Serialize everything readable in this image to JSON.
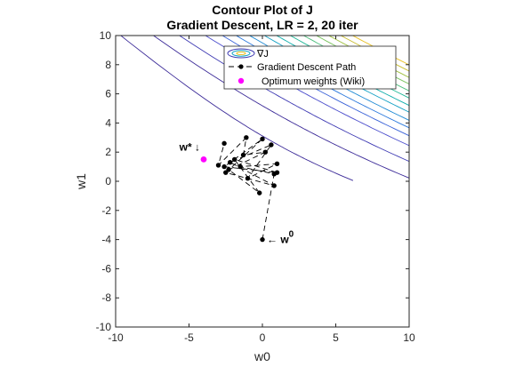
{
  "chart_data": {
    "type": "line",
    "title": "Contour Plot of J",
    "subtitle": "Gradient Descent, LR = 2, 20 iter",
    "xlabel": "w0",
    "ylabel": "w1",
    "xlim": [
      -10,
      10
    ],
    "ylim": [
      -10,
      10
    ],
    "xticks": [
      -10,
      -5,
      0,
      5,
      10
    ],
    "yticks": [
      -10,
      -8,
      -6,
      -4,
      -2,
      0,
      2,
      4,
      6,
      8,
      10
    ],
    "xtick_labels": [
      "-10",
      "-5",
      "0",
      "5",
      "10"
    ],
    "ytick_labels": [
      "-10",
      "-8",
      "-6",
      "-4",
      "-2",
      "0",
      "2",
      "4",
      "6",
      "8",
      "10"
    ],
    "grid": false,
    "legend_position": "top-center",
    "contour": {
      "name": "∇J",
      "min": [
        0.4,
        0.05
      ],
      "quad": {
        "a": 0.3,
        "b": 0.72,
        "c": 1.25
      },
      "levels": [
        10,
        30,
        48,
        68,
        82,
        94,
        106,
        120,
        132,
        146,
        160,
        174,
        188,
        202,
        216
      ],
      "colors": [
        "#3b2a98",
        "#3b2a98",
        "#3e3ab3",
        "#4a4ccc",
        "#3a62d8",
        "#2a78dc",
        "#1e8ad4",
        "#12a0c4",
        "#10aeac",
        "#24b898",
        "#4cbe7c",
        "#78c25c",
        "#a0c040",
        "#c8bc2c",
        "#e8c024"
      ]
    },
    "series": [
      {
        "name": "Gradient Descent Path",
        "style": "dashed-dots",
        "color": "#000000",
        "points": [
          [
            0,
            -4
          ],
          [
            0.8,
            0.5
          ],
          [
            -1.5,
            1
          ],
          [
            1,
            1.2
          ],
          [
            -1,
            0.2
          ],
          [
            0.6,
            2.5
          ],
          [
            -2.2,
            1.3
          ],
          [
            0.8,
            -0.3
          ],
          [
            -2.5,
            0.6
          ],
          [
            0,
            2.9
          ],
          [
            -2.6,
            1
          ],
          [
            1,
            0.6
          ],
          [
            -1.9,
            1.5
          ],
          [
            -0.2,
            -0.8
          ],
          [
            -2.3,
            0.8
          ],
          [
            0.2,
            2
          ],
          [
            -1.3,
            1.8
          ],
          [
            -1.1,
            3
          ],
          [
            -3,
            1.1
          ],
          [
            -2.6,
            2.6
          ]
        ]
      },
      {
        "name": "Optimum weights (Wiki)",
        "style": "marker",
        "color": "#ff00ff",
        "points": [
          [
            -4,
            1.5
          ]
        ]
      }
    ],
    "annotations": [
      {
        "text": "w* ↓",
        "x": -4,
        "y": 1.5
      },
      {
        "text": "← w",
        "superscript": "0",
        "x": 0,
        "y": -4
      }
    ]
  }
}
